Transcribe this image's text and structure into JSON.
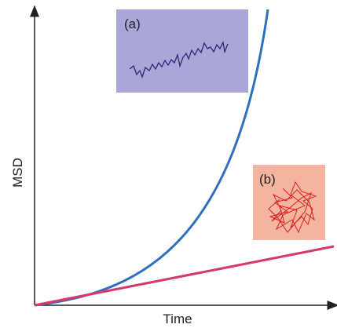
{
  "axes": {
    "x_label": "Time",
    "y_label": "MSD"
  },
  "insets": [
    {
      "label": "(a)"
    },
    {
      "label": "(b)"
    }
  ]
}
